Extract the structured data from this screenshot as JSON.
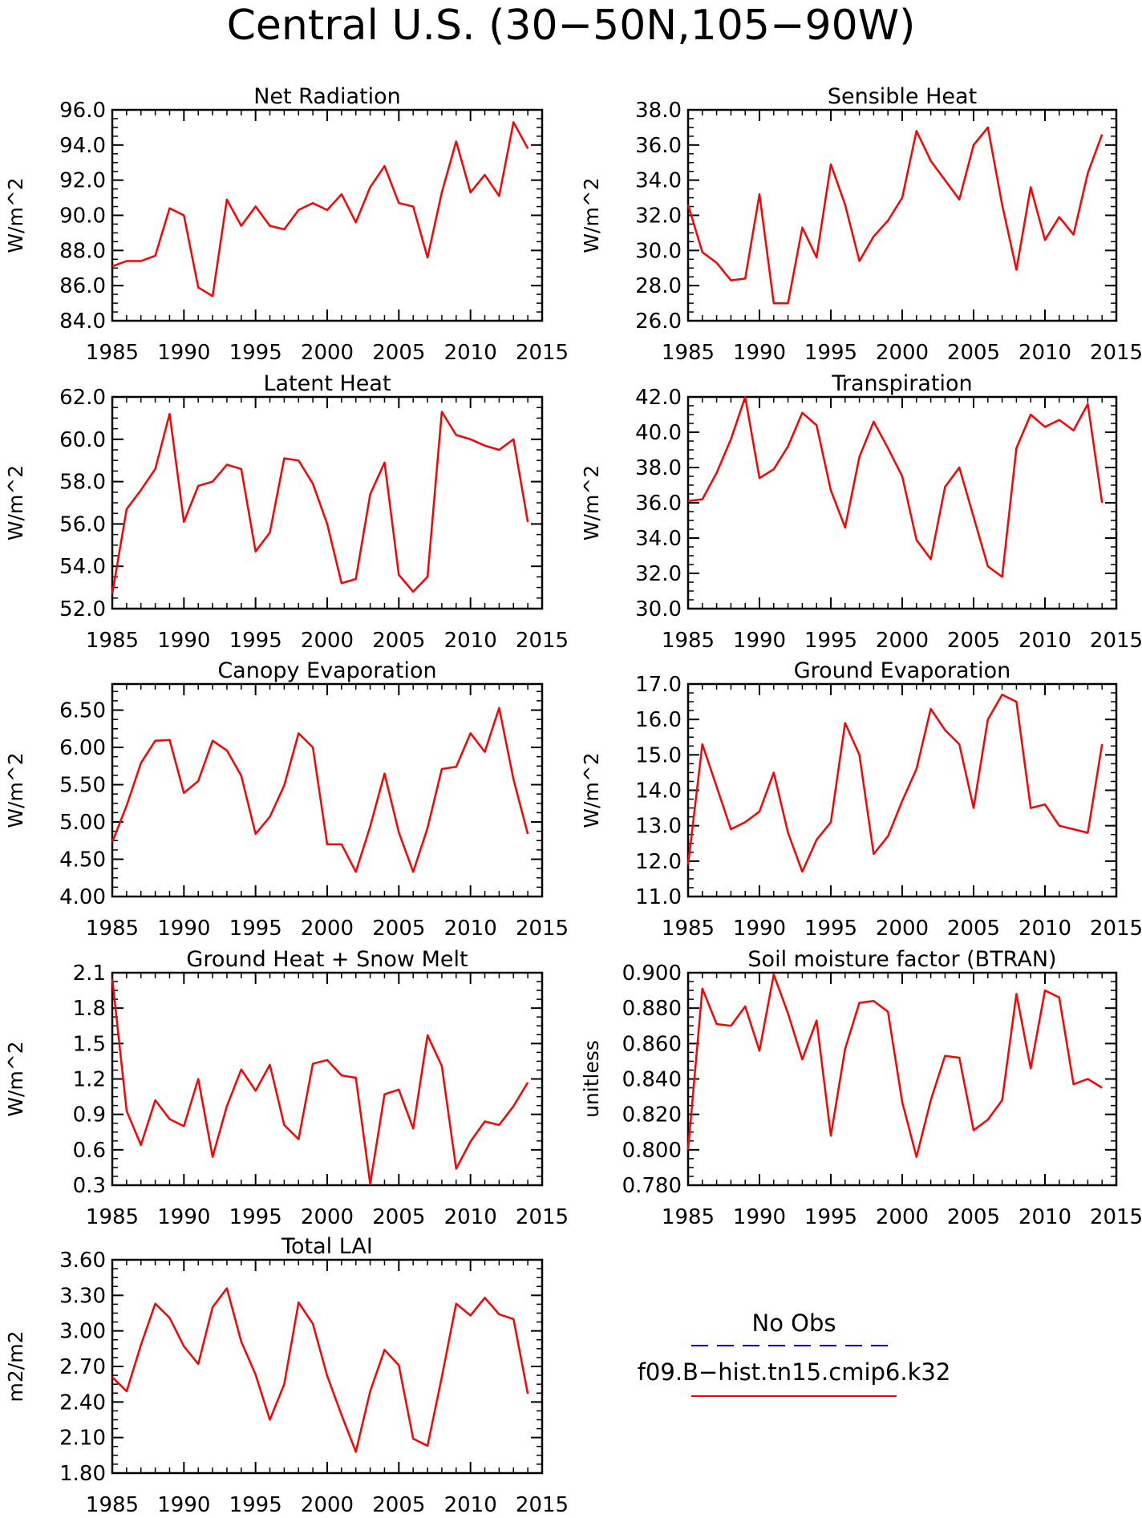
{
  "figure_title": "Central U.S. (30−50N,105−90W)",
  "colors": {
    "model_line": "#ff0000",
    "obs_line": "#0000ff",
    "axis": "#000000",
    "background": "#ffffff"
  },
  "legend": {
    "obs_label": "No Obs",
    "model_label": "f09.B−hist.tn15.cmip6.k32"
  },
  "chart_data": [
    {
      "type": "line",
      "title": "Net Radiation",
      "ylabel": "W/m^2",
      "xlim": [
        1985,
        2015
      ],
      "ylim": [
        84,
        96
      ],
      "yticks": [
        "84.0",
        "86.0",
        "88.0",
        "90.0",
        "92.0",
        "94.0",
        "96.0"
      ],
      "xticks": [
        "1985",
        "1990",
        "1995",
        "2000",
        "2005",
        "2010",
        "2015"
      ],
      "x": [
        1985,
        1986,
        1987,
        1988,
        1989,
        1990,
        1991,
        1992,
        1993,
        1994,
        1995,
        1996,
        1997,
        1998,
        1999,
        2000,
        2001,
        2002,
        2003,
        2004,
        2005,
        2006,
        2007,
        2008,
        2009,
        2010,
        2011,
        2012,
        2013,
        2014
      ],
      "series": [
        {
          "values": [
            87.1,
            87.4,
            87.4,
            87.7,
            90.4,
            90.0,
            85.9,
            85.4,
            90.9,
            89.4,
            90.5,
            89.4,
            89.2,
            90.3,
            90.7,
            90.3,
            91.2,
            89.6,
            91.6,
            92.8,
            90.7,
            90.5,
            87.6,
            91.3,
            94.2,
            91.3,
            92.3,
            91.1,
            95.3,
            93.8
          ]
        }
      ]
    },
    {
      "type": "line",
      "title": "Sensible Heat",
      "ylabel": "W/m^2",
      "xlim": [
        1985,
        2015
      ],
      "ylim": [
        26,
        38
      ],
      "yticks": [
        "26.0",
        "28.0",
        "30.0",
        "32.0",
        "34.0",
        "36.0",
        "38.0"
      ],
      "xticks": [
        "1985",
        "1990",
        "1995",
        "2000",
        "2005",
        "2010",
        "2015"
      ],
      "x": [
        1985,
        1986,
        1987,
        1988,
        1989,
        1990,
        1991,
        1992,
        1993,
        1994,
        1995,
        1996,
        1997,
        1998,
        1999,
        2000,
        2001,
        2002,
        2003,
        2004,
        2005,
        2006,
        2007,
        2008,
        2009,
        2010,
        2011,
        2012,
        2013,
        2014
      ],
      "series": [
        {
          "values": [
            32.6,
            29.9,
            29.3,
            28.3,
            28.4,
            33.2,
            27.0,
            27.0,
            31.3,
            29.6,
            34.9,
            32.6,
            29.4,
            30.8,
            31.7,
            33.0,
            36.8,
            35.1,
            34.0,
            32.9,
            36.0,
            37.0,
            32.6,
            28.9,
            33.6,
            30.6,
            31.9,
            30.9,
            34.4,
            36.6
          ]
        }
      ]
    },
    {
      "type": "line",
      "title": "Latent Heat",
      "ylabel": "W/m^2",
      "xlim": [
        1985,
        2015
      ],
      "ylim": [
        52,
        62
      ],
      "yticks": [
        "52.0",
        "54.0",
        "56.0",
        "58.0",
        "60.0",
        "62.0"
      ],
      "xticks": [
        "1985",
        "1990",
        "1995",
        "2000",
        "2005",
        "2010",
        "2015"
      ],
      "x": [
        1985,
        1986,
        1987,
        1988,
        1989,
        1990,
        1991,
        1992,
        1993,
        1994,
        1995,
        1996,
        1997,
        1998,
        1999,
        2000,
        2001,
        2002,
        2003,
        2004,
        2005,
        2006,
        2007,
        2008,
        2009,
        2010,
        2011,
        2012,
        2013,
        2014
      ],
      "series": [
        {
          "values": [
            52.7,
            56.7,
            57.6,
            58.6,
            61.2,
            56.1,
            57.8,
            58.0,
            58.8,
            58.6,
            54.7,
            55.6,
            59.1,
            59.0,
            57.9,
            56.0,
            53.2,
            53.4,
            57.4,
            58.9,
            53.6,
            52.8,
            53.5,
            61.3,
            60.2,
            60.0,
            59.7,
            59.5,
            60.0,
            56.1
          ]
        }
      ]
    },
    {
      "type": "line",
      "title": "Transpiration",
      "ylabel": "W/m^2",
      "xlim": [
        1985,
        2015
      ],
      "ylim": [
        30,
        42
      ],
      "yticks": [
        "30.0",
        "32.0",
        "34.0",
        "36.0",
        "38.0",
        "40.0",
        "42.0"
      ],
      "xticks": [
        "1985",
        "1990",
        "1995",
        "2000",
        "2005",
        "2010",
        "2015"
      ],
      "x": [
        1985,
        1986,
        1987,
        1988,
        1989,
        1990,
        1991,
        1992,
        1993,
        1994,
        1995,
        1996,
        1997,
        1998,
        1999,
        2000,
        2001,
        2002,
        2003,
        2004,
        2005,
        2006,
        2007,
        2008,
        2009,
        2010,
        2011,
        2012,
        2013,
        2014
      ],
      "series": [
        {
          "values": [
            36.1,
            36.2,
            37.7,
            39.6,
            42.0,
            37.4,
            37.9,
            39.2,
            41.1,
            40.4,
            36.7,
            34.6,
            38.6,
            40.6,
            39.1,
            37.5,
            33.9,
            32.8,
            36.9,
            38.0,
            35.2,
            32.4,
            31.8,
            39.1,
            41.0,
            40.3,
            40.7,
            40.1,
            41.6,
            36.0
          ]
        }
      ]
    },
    {
      "type": "line",
      "title": "Canopy Evaporation",
      "ylabel": "W/m^2",
      "xlim": [
        1985,
        2015
      ],
      "ylim": [
        4.0,
        6.85
      ],
      "yticks": [
        "4.00",
        "4.50",
        "5.00",
        "5.50",
        "6.00",
        "6.50"
      ],
      "xticks": [
        "1985",
        "1990",
        "1995",
        "2000",
        "2005",
        "2010",
        "2015"
      ],
      "x": [
        1985,
        1986,
        1987,
        1988,
        1989,
        1990,
        1991,
        1992,
        1993,
        1994,
        1995,
        1996,
        1997,
        1998,
        1999,
        2000,
        2001,
        2002,
        2003,
        2004,
        2005,
        2006,
        2007,
        2008,
        2009,
        2010,
        2011,
        2012,
        2013,
        2014
      ],
      "series": [
        {
          "values": [
            4.73,
            5.22,
            5.79,
            6.09,
            6.1,
            5.39,
            5.55,
            6.09,
            5.96,
            5.62,
            4.84,
            5.07,
            5.49,
            6.19,
            6.0,
            4.7,
            4.7,
            4.33,
            4.94,
            5.65,
            4.86,
            4.33,
            4.92,
            5.71,
            5.74,
            6.19,
            5.94,
            6.53,
            5.57,
            4.84
          ]
        }
      ]
    },
    {
      "type": "line",
      "title": "Ground Evaporation",
      "ylabel": "W/m^2",
      "xlim": [
        1985,
        2015
      ],
      "ylim": [
        11,
        17
      ],
      "yticks": [
        "11.0",
        "12.0",
        "13.0",
        "14.0",
        "15.0",
        "16.0",
        "17.0"
      ],
      "xticks": [
        "1985",
        "1990",
        "1995",
        "2000",
        "2005",
        "2010",
        "2015"
      ],
      "x": [
        1985,
        1986,
        1987,
        1988,
        1989,
        1990,
        1991,
        1992,
        1993,
        1994,
        1995,
        1996,
        1997,
        1998,
        1999,
        2000,
        2001,
        2002,
        2003,
        2004,
        2005,
        2006,
        2007,
        2008,
        2009,
        2010,
        2011,
        2012,
        2013,
        2014
      ],
      "series": [
        {
          "values": [
            11.9,
            15.3,
            14.1,
            12.9,
            13.1,
            13.4,
            14.5,
            12.8,
            11.7,
            12.6,
            13.1,
            15.9,
            15.0,
            12.2,
            12.7,
            13.7,
            14.6,
            16.3,
            15.7,
            15.3,
            13.5,
            16.0,
            16.7,
            16.5,
            13.5,
            13.6,
            13.0,
            12.9,
            12.8,
            15.3
          ]
        }
      ]
    },
    {
      "type": "line",
      "title": "Ground Heat + Snow Melt",
      "ylabel": "W/m^2",
      "xlim": [
        1985,
        2015
      ],
      "ylim": [
        0.3,
        2.1
      ],
      "yticks": [
        "0.3",
        "0.6",
        "0.9",
        "1.2",
        "1.5",
        "1.8",
        "2.1"
      ],
      "xticks": [
        "1985",
        "1990",
        "1995",
        "2000",
        "2005",
        "2010",
        "2015"
      ],
      "x": [
        1985,
        1986,
        1987,
        1988,
        1989,
        1990,
        1991,
        1992,
        1993,
        1994,
        1995,
        1996,
        1997,
        1998,
        1999,
        2000,
        2001,
        2002,
        2003,
        2004,
        2005,
        2006,
        2007,
        2008,
        2009,
        2010,
        2011,
        2012,
        2013,
        2014
      ],
      "series": [
        {
          "values": [
            2.05,
            0.93,
            0.64,
            1.02,
            0.86,
            0.8,
            1.2,
            0.54,
            0.97,
            1.28,
            1.1,
            1.32,
            0.81,
            0.69,
            1.33,
            1.36,
            1.23,
            1.21,
            0.31,
            1.07,
            1.11,
            0.78,
            1.57,
            1.31,
            0.44,
            0.67,
            0.84,
            0.81,
            0.97,
            1.17
          ]
        }
      ]
    },
    {
      "type": "line",
      "title": "Soil moisture factor (BTRAN)",
      "ylabel": "unitless",
      "xlim": [
        1985,
        2015
      ],
      "ylim": [
        0.78,
        0.9
      ],
      "yticks": [
        "0.780",
        "0.800",
        "0.820",
        "0.840",
        "0.860",
        "0.880",
        "0.900"
      ],
      "xticks": [
        "1985",
        "1990",
        "1995",
        "2000",
        "2005",
        "2010",
        "2015"
      ],
      "x": [
        1985,
        1986,
        1987,
        1988,
        1989,
        1990,
        1991,
        1992,
        1993,
        1994,
        1995,
        1996,
        1997,
        1998,
        1999,
        2000,
        2001,
        2002,
        2003,
        2004,
        2005,
        2006,
        2007,
        2008,
        2009,
        2010,
        2011,
        2012,
        2013,
        2014
      ],
      "series": [
        {
          "values": [
            0.8,
            0.891,
            0.871,
            0.87,
            0.881,
            0.856,
            0.899,
            0.877,
            0.851,
            0.873,
            0.808,
            0.857,
            0.883,
            0.884,
            0.878,
            0.827,
            0.796,
            0.828,
            0.853,
            0.852,
            0.811,
            0.817,
            0.828,
            0.888,
            0.846,
            0.89,
            0.886,
            0.837,
            0.84,
            0.835
          ]
        }
      ]
    },
    {
      "type": "line",
      "title": "Total LAI",
      "ylabel": "m2/m2",
      "xlim": [
        1985,
        2015
      ],
      "ylim": [
        1.8,
        3.6
      ],
      "yticks": [
        "1.80",
        "2.10",
        "2.40",
        "2.70",
        "3.00",
        "3.30",
        "3.60"
      ],
      "xticks": [
        "1985",
        "1990",
        "1995",
        "2000",
        "2005",
        "2010",
        "2015"
      ],
      "x": [
        1985,
        1986,
        1987,
        1988,
        1989,
        1990,
        1991,
        1992,
        1993,
        1994,
        1995,
        1996,
        1997,
        1998,
        1999,
        2000,
        2001,
        2002,
        2003,
        2004,
        2005,
        2006,
        2007,
        2008,
        2009,
        2010,
        2011,
        2012,
        2013,
        2014
      ],
      "series": [
        {
          "values": [
            2.61,
            2.49,
            2.88,
            3.23,
            3.11,
            2.87,
            2.72,
            3.2,
            3.36,
            2.91,
            2.63,
            2.25,
            2.55,
            3.24,
            3.06,
            2.62,
            2.29,
            1.98,
            2.49,
            2.84,
            2.71,
            2.09,
            2.03,
            2.61,
            3.23,
            3.13,
            3.28,
            3.14,
            3.1,
            2.47
          ]
        }
      ]
    }
  ]
}
